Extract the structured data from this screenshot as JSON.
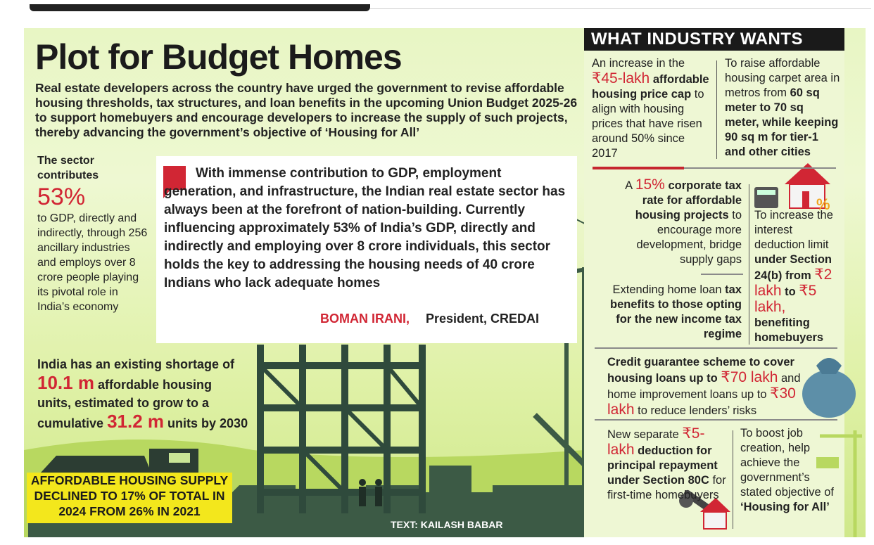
{
  "header": {
    "title": "Plot for Budget Homes",
    "intro": "Real estate developers across the country have urged the government to revise affordable housing thresholds, tax structures, and loan benefits in the upcoming Union Budget 2025-26 to support homebuyers and encourage developers to increase the supply of such projects, thereby advancing the government’s objective of ‘Housing for All’"
  },
  "stat_gdp": {
    "lead": "The sector contributes",
    "value": "53%",
    "text": "to GDP, directly and indirectly, through 256 ancillary industries and employs over 8 crore people playing its pivotal role in India’s economy"
  },
  "stat_shortage": {
    "t1": "India has an existing shortage of",
    "v1": "10.1 m",
    "t2": "affordable housing units, estimated to grow to a cumulative",
    "v2": "31.2 m",
    "t3": "units by 2030"
  },
  "band": {
    "line1": "AFFORDABLE HOUSING SUPPLY",
    "line2": "DECLINED TO 17% OF TOTAL IN",
    "line3": "2024 FROM 26% IN 2021"
  },
  "quote": {
    "text": "With immense contribution to GDP, employment generation, and infrastructure, the Indian real estate sector has always been at the forefront of nation-building. Currently influencing approximately 53% of India’s GDP, directly and indirectly and employing over 8 crore individuals, this sector holds the key to addressing the housing needs of 40 crore Indians who lack adequate homes",
    "name": "BOMAN IRANI,",
    "role": "President, CREDAI"
  },
  "credit": "TEXT: KAILASH BABAR",
  "wants": {
    "heading": "WHAT INDUSTRY WANTS",
    "w1": {
      "a": "An increase in the",
      "v": "₹45-lakh",
      "b": "affordable housing price cap",
      "c": "to align with housing prices that have risen around 50% since 2017"
    },
    "w2": {
      "a": "To raise affordable housing carpet area in metros from",
      "b": "60 sq meter to 70 sq meter, while keeping 90 sq m for tier-1 and other cities"
    },
    "w3": {
      "a": "A",
      "v": "15%",
      "b": "corporate tax rate for affordable housing projects",
      "c": "to encourage more development, bridge supply gaps"
    },
    "w4": {
      "a": "To increase the interest deduction limit",
      "b": "under Section 24(b) from",
      "v1": "₹2 lakh",
      "m": "to",
      "v2": "₹5 lakh,",
      "c": "benefiting homebuyers"
    },
    "w5": {
      "a": "Extending home loan",
      "b": "tax benefits to those opting for the new income tax regime"
    },
    "w6": {
      "a": "Credit guarantee scheme to cover housing loans up to",
      "v1": "₹70 lakh",
      "m": "and home improvement loans up to",
      "v2": "₹30 lakh",
      "c": "to reduce lenders’ risks"
    },
    "w7": {
      "a": "New separate",
      "v": "₹5-lakh",
      "b": "deduction for principal repayment under Section 80C",
      "c": "for first-time homebuyers"
    },
    "w8": {
      "a": "To boost job creation, help achieve the government’s stated objective of",
      "b": "‘Housing for All’"
    }
  },
  "colors": {
    "accent_red": "#d12634",
    "band_yellow": "#f3e71c",
    "panel_green": "#e8f6c4",
    "building_dark": "#2f4a3c"
  }
}
